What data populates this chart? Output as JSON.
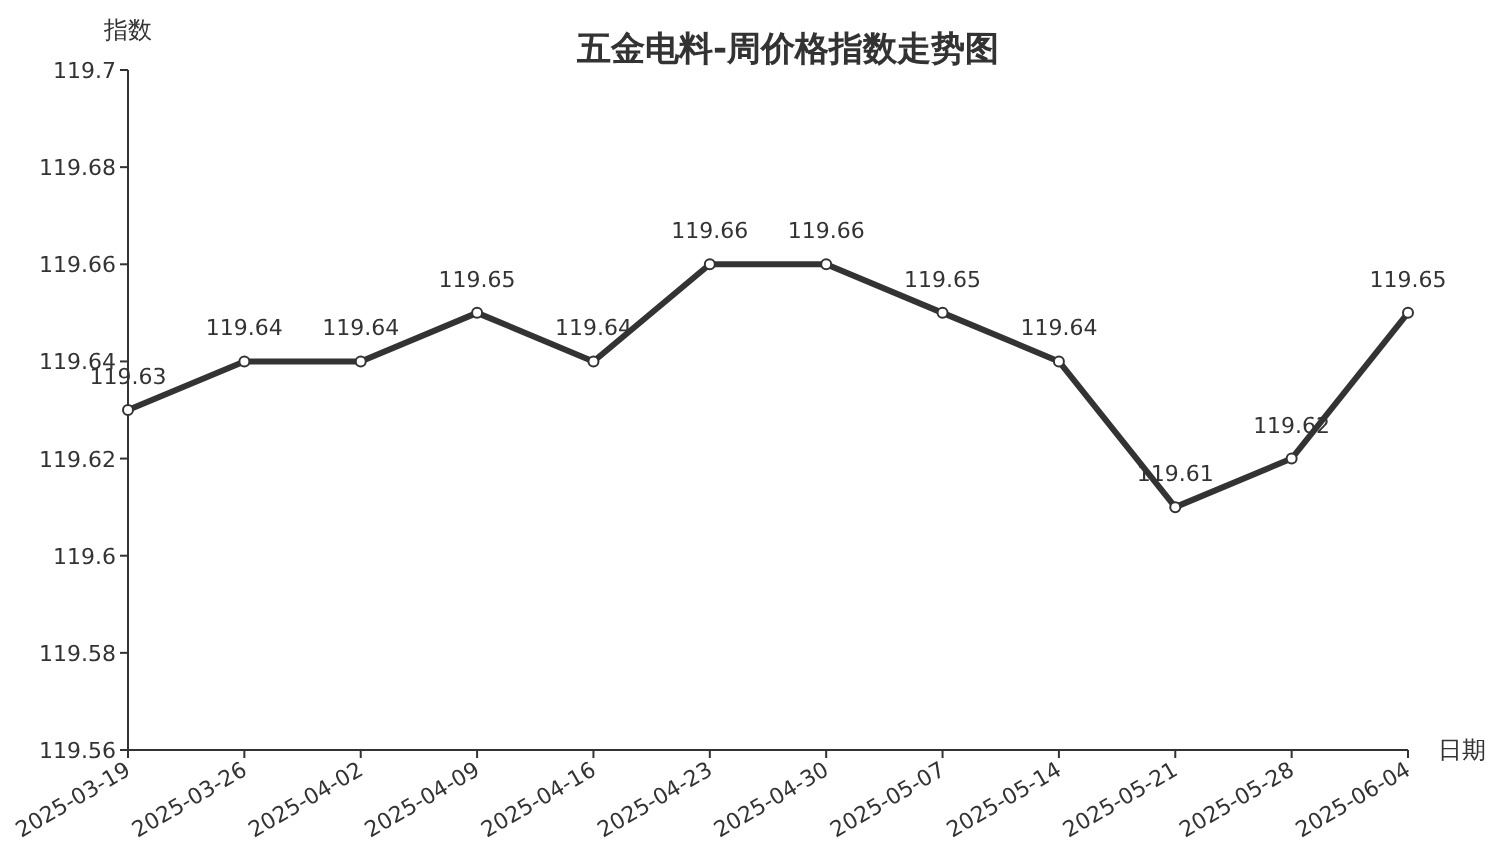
{
  "chart_data": {
    "type": "line",
    "title": "五金电料-周价格指数走势图",
    "xlabel": "日期",
    "ylabel": "指数",
    "categories": [
      "2025-03-19",
      "2025-03-26",
      "2025-04-02",
      "2025-04-09",
      "2025-04-16",
      "2025-04-23",
      "2025-04-30",
      "2025-05-07",
      "2025-05-14",
      "2025-05-21",
      "2025-05-28",
      "2025-06-04"
    ],
    "values": [
      119.63,
      119.64,
      119.64,
      119.65,
      119.64,
      119.66,
      119.66,
      119.65,
      119.64,
      119.61,
      119.62,
      119.65
    ],
    "color": "#333333",
    "ylim": [
      119.56,
      119.7
    ],
    "yticks": [
      119.56,
      119.58,
      119.6,
      119.62,
      119.64,
      119.66,
      119.68,
      119.7
    ],
    "data_labels": true,
    "marker": "circle",
    "line_style": "solid"
  }
}
